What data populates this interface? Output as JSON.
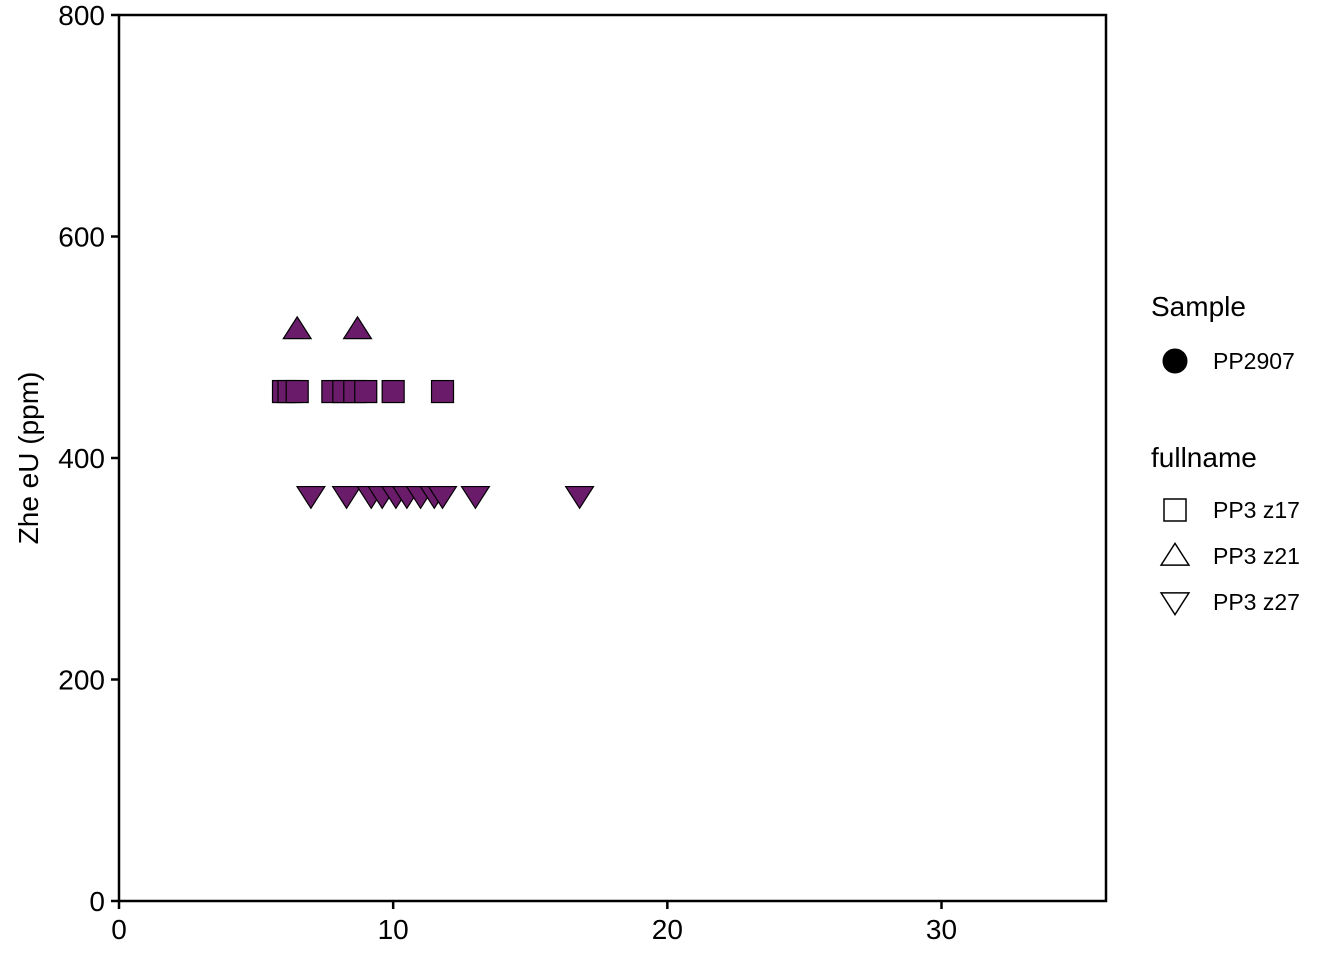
{
  "chart_data": {
    "type": "scatter",
    "title": "",
    "xlabel": "",
    "ylabel": "Zhe eU (ppm)",
    "xlim": [
      0,
      36
    ],
    "ylim": [
      0,
      800
    ],
    "xticks": [
      0,
      10,
      20,
      30
    ],
    "yticks": [
      0,
      200,
      400,
      600,
      800
    ],
    "grid": false,
    "legend_placement": "right",
    "fill_color": "#6a1b6a",
    "series": [
      {
        "name": "PP3 z17",
        "shape": "square",
        "x": [
          6.0,
          6.2,
          6.5,
          7.8,
          8.2,
          8.6,
          9.0,
          10.0,
          11.8
        ],
        "y": [
          460,
          460,
          460,
          460,
          460,
          460,
          460,
          460,
          460
        ]
      },
      {
        "name": "PP3 z21",
        "shape": "triangle-up",
        "x": [
          6.5,
          8.7
        ],
        "y": [
          516,
          516
        ]
      },
      {
        "name": "PP3 z27",
        "shape": "triangle-down",
        "x": [
          7.0,
          8.3,
          9.2,
          9.6,
          10.1,
          10.5,
          11.0,
          11.5,
          11.8,
          13.0,
          16.8
        ],
        "y": [
          366,
          366,
          366,
          366,
          366,
          366,
          366,
          366,
          366,
          366,
          366
        ]
      }
    ],
    "legend": {
      "sample_title": "Sample",
      "sample_items": [
        {
          "label": "PP2907",
          "shape": "circle"
        }
      ],
      "fullname_title": "fullname",
      "fullname_items": [
        {
          "label": "PP3 z17",
          "shape": "square"
        },
        {
          "label": "PP3 z21",
          "shape": "triangle-up"
        },
        {
          "label": "PP3 z27",
          "shape": "triangle-down"
        }
      ]
    }
  }
}
